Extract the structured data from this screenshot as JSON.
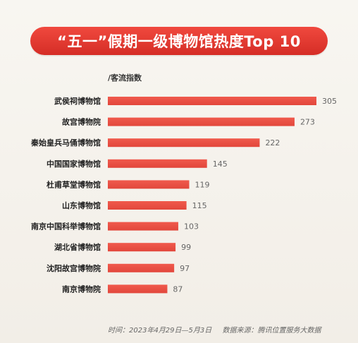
{
  "colors": {
    "banner": "#e33b32",
    "bar": "#e2473c",
    "bar_light": "#f05a4d",
    "label_text": "#222222",
    "value_text": "#666666"
  },
  "chart_data": {
    "type": "bar",
    "orientation": "horizontal",
    "title": "“五一”假期一级博物馆热度Top 10",
    "value_label": "/客流指数",
    "categories": [
      "武侯祠博物馆",
      "故宫博物院",
      "秦始皇兵马俑博物馆",
      "中国国家博物馆",
      "杜甫草堂博物馆",
      "山东博物馆",
      "南京中国科举博物馆",
      "湖北省博物馆",
      "沈阳故宫博物院",
      "南京博物院"
    ],
    "values": [
      305,
      273,
      222,
      145,
      119,
      115,
      103,
      99,
      97,
      87
    ],
    "value_labels": [
      "305",
      "273",
      "222",
      "145",
      "119",
      "115",
      "103",
      "99",
      "97",
      "87"
    ],
    "xlim": [
      0,
      305
    ],
    "grid": false,
    "legend": "none"
  },
  "footer": {
    "time": "时间：2023年4月29日—5月3日",
    "source": "数据来源：腾讯位置服务大数据"
  }
}
